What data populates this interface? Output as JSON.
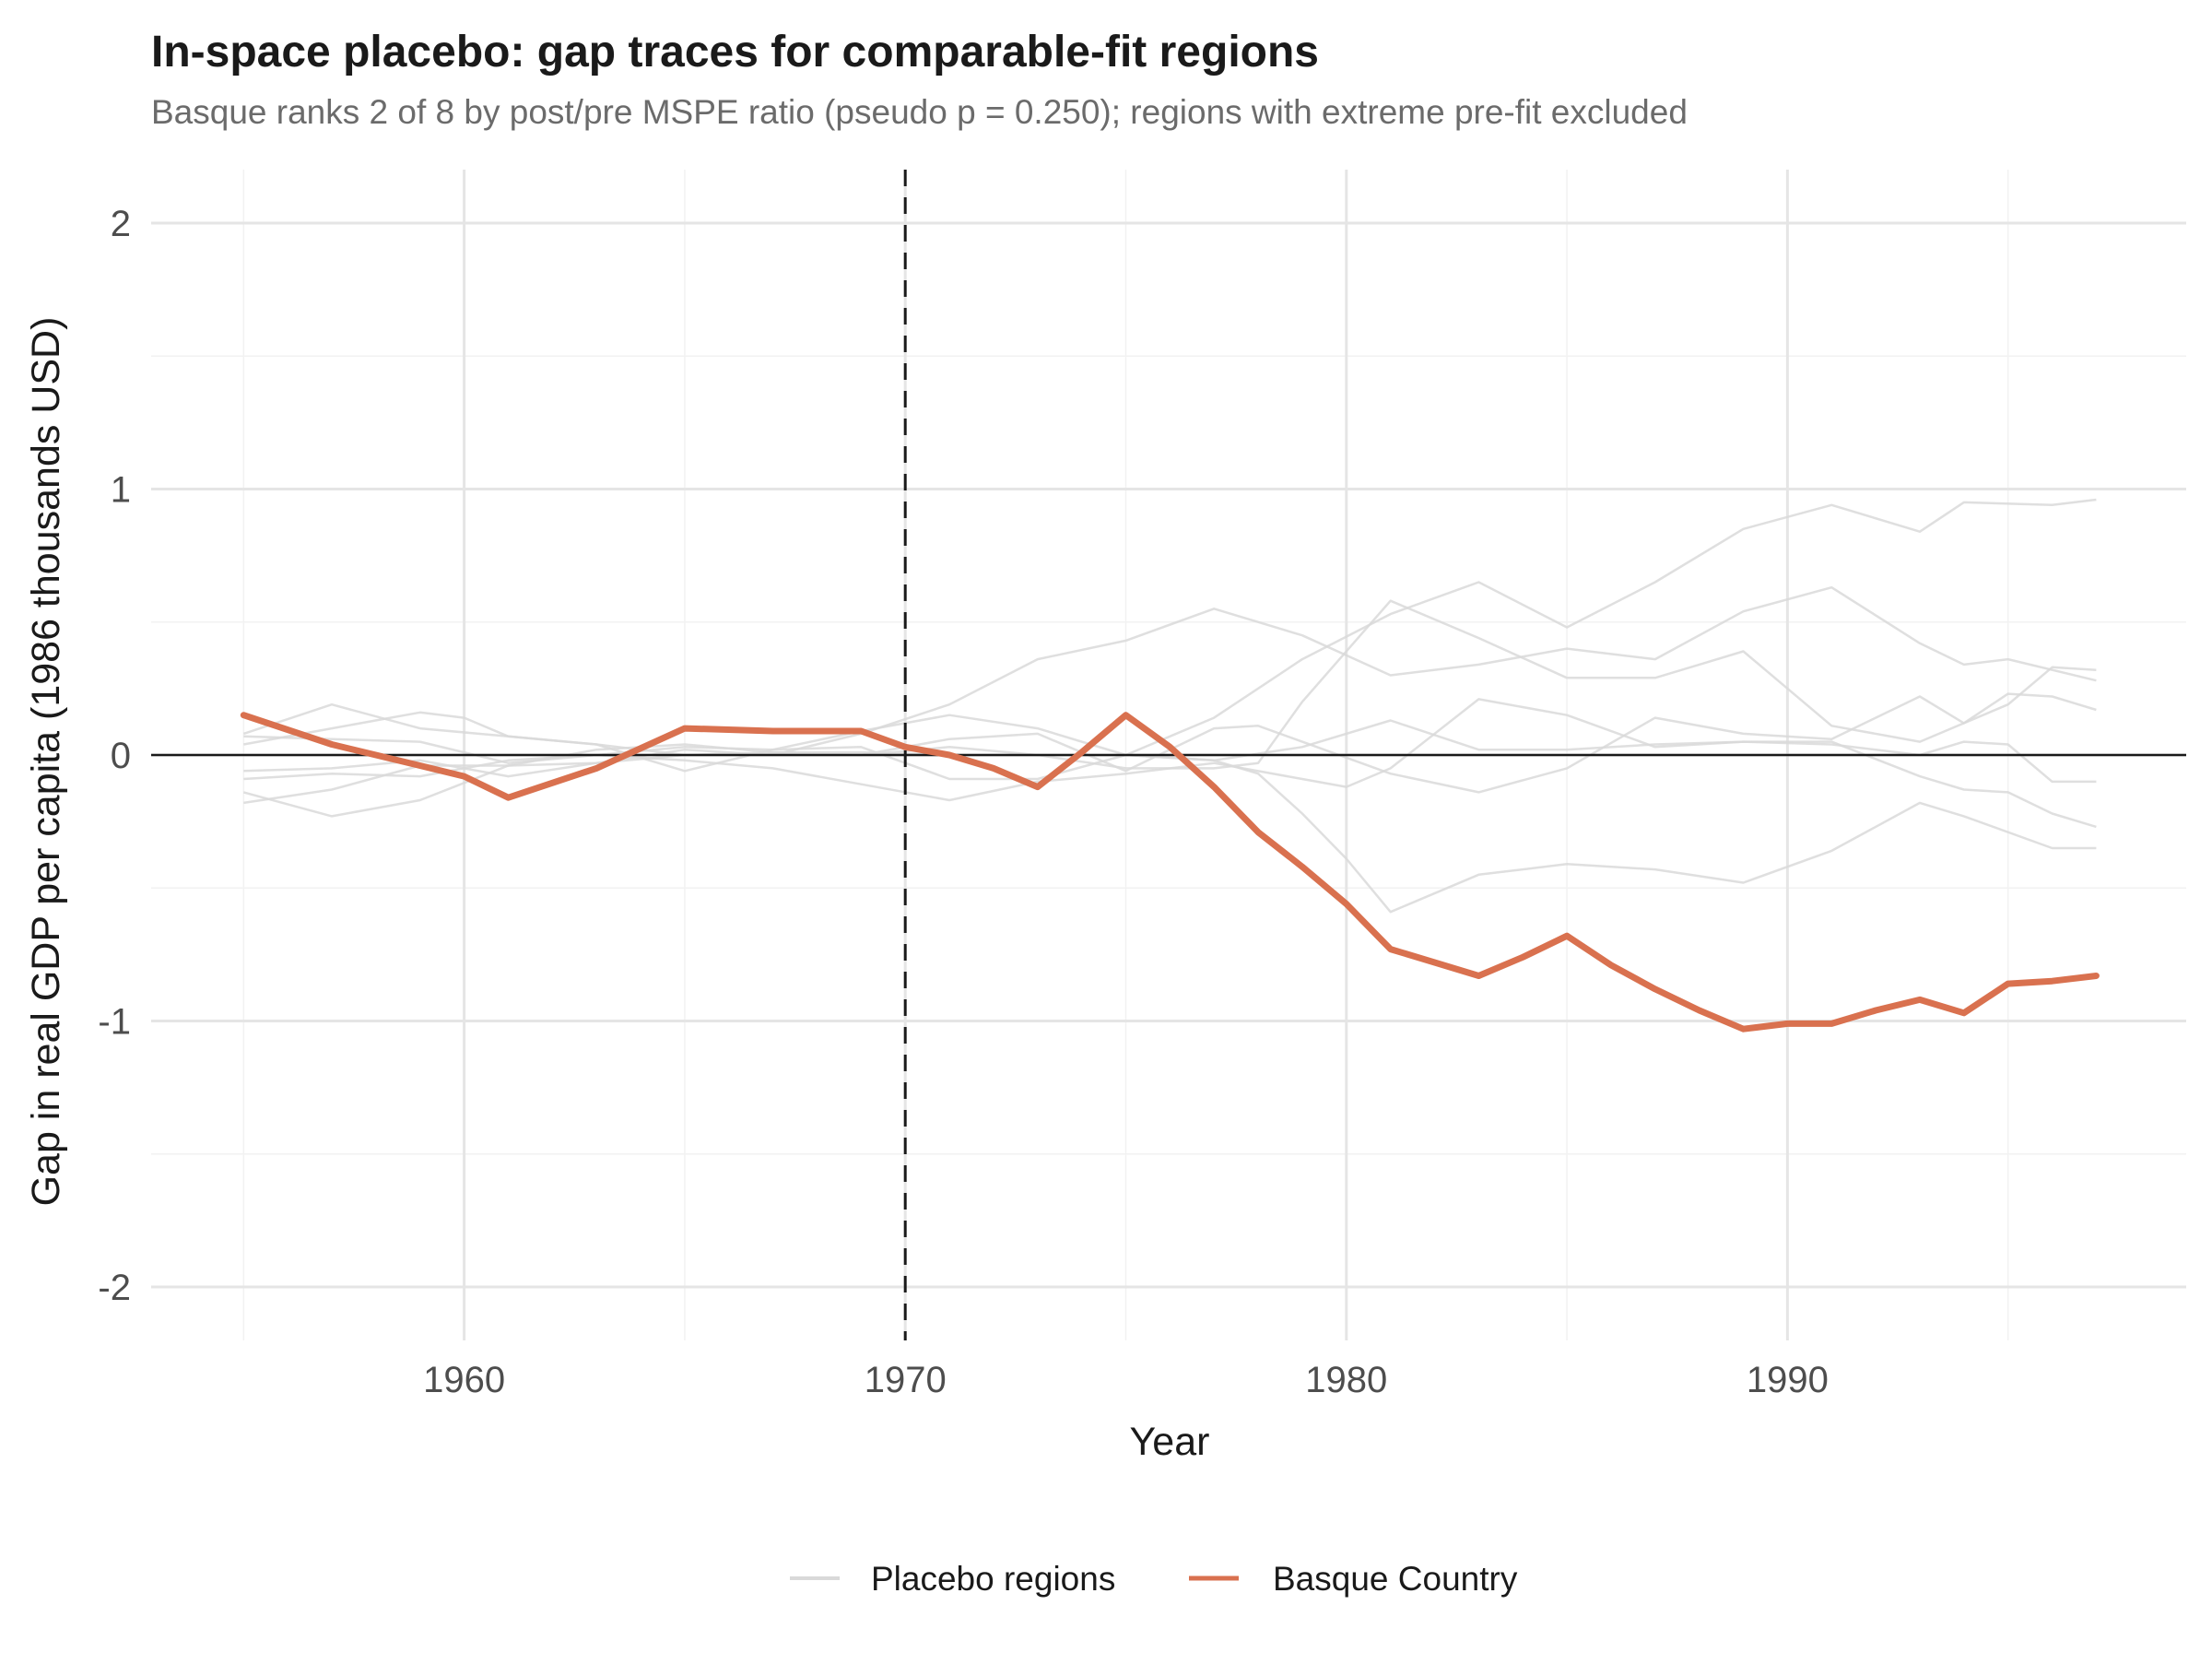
{
  "chart_data": {
    "type": "line",
    "title": "In-space placebo: gap traces for comparable-fit regions",
    "subtitle": "Basque ranks 2 of 8 by post/pre MSPE ratio (pseudo p = 0.250); regions with extreme pre-fit excluded",
    "xlabel": "Year",
    "ylabel": "Gap in real GDP per capita (1986 thousands USD)",
    "xlim": [
      1953,
      1999
    ],
    "ylim": [
      -2.2,
      2.2
    ],
    "x_ticks": [
      1960,
      1970,
      1980,
      1990
    ],
    "x_tick_labels": [
      "1960",
      "1970",
      "1980",
      "1990"
    ],
    "y_ticks": [
      2,
      1,
      0,
      -1,
      -2
    ],
    "y_tick_labels": [
      "2",
      "1",
      "0",
      "-1",
      "-2"
    ],
    "grid": true,
    "treatment_year": 1970,
    "reference_line": 0,
    "legend_position": "bottom",
    "legend": [
      "Placebo regions",
      "Basque Country"
    ],
    "colors": {
      "placebo": "#d9d9d9",
      "basque": "#d9714f",
      "reference": "#1a1a1a",
      "grid": "#e5e5e5"
    },
    "series": [
      {
        "name": "Basque Country",
        "x": [
          1955,
          1957,
          1959,
          1960,
          1961,
          1963,
          1965,
          1967,
          1969,
          1970,
          1971,
          1972,
          1973,
          1974,
          1975,
          1976,
          1977,
          1978,
          1979,
          1980,
          1981,
          1982,
          1983,
          1984,
          1985,
          1986,
          1987,
          1988,
          1989,
          1990,
          1991,
          1992,
          1993,
          1994,
          1995,
          1996,
          1997
        ],
        "y": [
          0.15,
          0.04,
          -0.04,
          -0.08,
          -0.16,
          -0.05,
          0.1,
          0.09,
          0.09,
          0.03,
          0.0,
          -0.05,
          -0.12,
          0.01,
          0.15,
          0.03,
          -0.12,
          -0.29,
          -0.42,
          -0.56,
          -0.73,
          -0.78,
          -0.83,
          -0.76,
          -0.68,
          -0.79,
          -0.88,
          -0.96,
          -1.03,
          -1.01,
          -1.01,
          -0.96,
          -0.92,
          -0.97,
          -0.86,
          -0.85,
          -0.83
        ]
      },
      {
        "name": "Placebo regions",
        "x": [
          1955,
          1957,
          1959,
          1960,
          1961,
          1963,
          1965,
          1967,
          1969,
          1971,
          1973,
          1975,
          1977,
          1979,
          1981,
          1983,
          1985,
          1987,
          1989,
          1991,
          1993,
          1994,
          1996,
          1997
        ],
        "y": [
          0.04,
          0.1,
          0.16,
          0.14,
          0.07,
          0.04,
          -0.06,
          0.02,
          0.09,
          0.15,
          0.1,
          0.0,
          0.14,
          0.36,
          0.53,
          0.65,
          0.48,
          0.65,
          0.85,
          0.94,
          0.84,
          0.95,
          0.94,
          0.96
        ]
      },
      {
        "name": "Placebo regions",
        "x": [
          1955,
          1957,
          1959,
          1961,
          1963,
          1965,
          1967,
          1969,
          1971,
          1973,
          1975,
          1977,
          1979,
          1981,
          1983,
          1985,
          1987,
          1989,
          1991,
          1993,
          1994,
          1995,
          1997
        ],
        "y": [
          0.08,
          0.19,
          0.1,
          0.07,
          0.04,
          0.0,
          0.0,
          0.08,
          0.19,
          0.36,
          0.43,
          0.55,
          0.45,
          0.3,
          0.34,
          0.4,
          0.36,
          0.54,
          0.63,
          0.42,
          0.34,
          0.36,
          0.28
        ]
      },
      {
        "name": "Placebo regions",
        "x": [
          1955,
          1957,
          1959,
          1961,
          1963,
          1965,
          1967,
          1969,
          1971,
          1973,
          1975,
          1977,
          1978,
          1979,
          1981,
          1983,
          1985,
          1987,
          1988,
          1989,
          1991,
          1993,
          1995,
          1996,
          1997
        ],
        "y": [
          -0.18,
          -0.13,
          -0.04,
          -0.04,
          0.02,
          0.04,
          0.01,
          0.01,
          0.0,
          0.0,
          -0.05,
          -0.05,
          -0.03,
          0.2,
          0.58,
          0.44,
          0.29,
          0.29,
          0.34,
          0.39,
          0.11,
          0.05,
          0.19,
          0.33,
          0.32
        ]
      },
      {
        "name": "Placebo regions",
        "x": [
          1955,
          1957,
          1959,
          1961,
          1963,
          1965,
          1967,
          1969,
          1971,
          1973,
          1975,
          1977,
          1978,
          1979,
          1981,
          1983,
          1985,
          1987,
          1989,
          1991,
          1993,
          1994,
          1995,
          1996,
          1997
        ],
        "y": [
          -0.14,
          -0.23,
          -0.17,
          -0.04,
          -0.03,
          0.02,
          0.0,
          0.0,
          0.06,
          0.08,
          -0.06,
          0.1,
          0.11,
          0.05,
          -0.07,
          -0.14,
          -0.05,
          0.14,
          0.08,
          0.06,
          0.22,
          0.12,
          0.23,
          0.22,
          0.17
        ]
      },
      {
        "name": "Placebo regions",
        "x": [
          1955,
          1957,
          1959,
          1961,
          1963,
          1965,
          1967,
          1969,
          1971,
          1973,
          1975,
          1977,
          1979,
          1980,
          1981,
          1983,
          1985,
          1987,
          1989,
          1991,
          1993,
          1994,
          1995,
          1996,
          1997
        ],
        "y": [
          0.07,
          0.06,
          0.05,
          -0.03,
          0.0,
          -0.02,
          -0.05,
          -0.11,
          -0.17,
          -0.1,
          -0.07,
          -0.03,
          -0.09,
          -0.12,
          -0.05,
          0.21,
          0.15,
          0.03,
          0.05,
          0.05,
          -0.08,
          -0.13,
          -0.14,
          -0.22,
          -0.27
        ]
      },
      {
        "name": "Placebo regions",
        "x": [
          1955,
          1957,
          1959,
          1961,
          1963,
          1965,
          1967,
          1969,
          1971,
          1973,
          1975,
          1977,
          1978,
          1979,
          1980,
          1981,
          1983,
          1985,
          1987,
          1989,
          1991,
          1993,
          1994,
          1996,
          1997
        ],
        "y": [
          -0.09,
          -0.07,
          -0.08,
          -0.02,
          0.0,
          0.03,
          0.02,
          0.03,
          -0.09,
          -0.09,
          0.0,
          -0.02,
          -0.07,
          -0.22,
          -0.39,
          -0.59,
          -0.45,
          -0.41,
          -0.43,
          -0.48,
          -0.36,
          -0.18,
          -0.23,
          -0.35,
          -0.35
        ]
      },
      {
        "name": "Placebo regions",
        "x": [
          1955,
          1957,
          1959,
          1961,
          1963,
          1965,
          1967,
          1969,
          1971,
          1973,
          1975,
          1977,
          1979,
          1981,
          1983,
          1985,
          1987,
          1989,
          1991,
          1993,
          1994,
          1995,
          1996,
          1997
        ],
        "y": [
          -0.06,
          -0.05,
          -0.02,
          -0.08,
          -0.03,
          0.0,
          0.01,
          0.0,
          0.03,
          0.0,
          0.0,
          -0.02,
          0.03,
          0.13,
          0.02,
          0.02,
          0.04,
          0.05,
          0.04,
          0.0,
          0.05,
          0.04,
          -0.1,
          -0.1
        ]
      }
    ]
  }
}
